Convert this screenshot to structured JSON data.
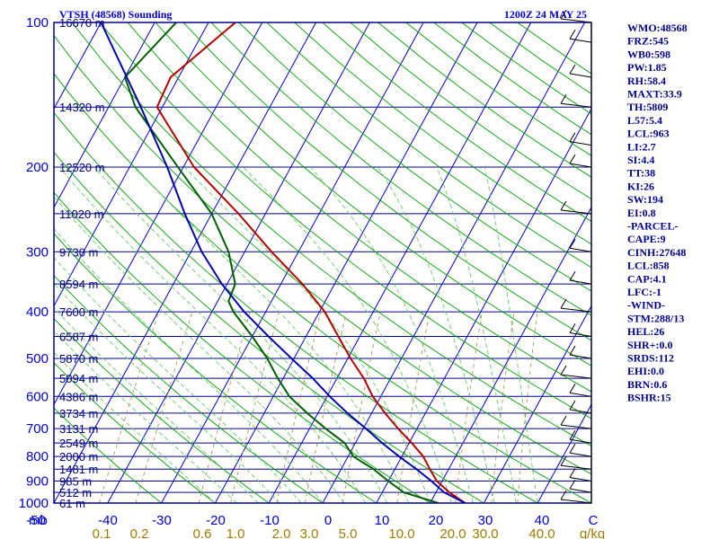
{
  "header": {
    "title": "VTSH (48568) Sounding",
    "time": "1200Z 24 MAY 25"
  },
  "indices": [
    "WMO:48568",
    "FRZ:545",
    "WB0:598",
    "PW:1.85",
    "RH:58.4",
    "MAXT:33.9",
    "TH:5809",
    "L57:5.4",
    "LCL:963",
    "LI:2.7",
    "SI:4.4",
    "TT:38",
    "KI:26",
    "SW:194",
    "EI:0.8",
    "-PARCEL-",
    "CAPE:9",
    "CINH:27648",
    "LCL:858",
    "CAP:4.1",
    "LFC:-1",
    "-WIND-",
    "STM:288/13",
    "HEL:26",
    "SHR+:0.0",
    "SRDS:112",
    "EHI:0.0",
    "BRN:0.6",
    "BSHR:15"
  ],
  "colors": {
    "frame": "#00008b",
    "isobar": "#00008b",
    "isotherm": "#0000cc",
    "dry_adiabat": "#00a000",
    "moist_adiabat": "#66cc66",
    "mixing_ratio": "#a08a40",
    "temperature": "#b00000",
    "dewpoint": "#006000",
    "parcel": "#0000aa",
    "text": "#00008b"
  },
  "chart_data": {
    "type": "line",
    "title": "VTSH (48568) Sounding",
    "yscale": "log-pressure",
    "ylabel": "mb",
    "xlabel": "C",
    "xlim": [
      -50,
      50
    ],
    "ylim": [
      1000,
      100
    ],
    "pressure_levels": [
      100,
      150,
      200,
      250,
      300,
      350,
      400,
      450,
      500,
      550,
      600,
      650,
      700,
      750,
      800,
      850,
      900,
      950,
      1000
    ],
    "pressure_tick_labels": [
      "100",
      "200",
      "300",
      "400",
      "500",
      "600",
      "700",
      "800",
      "900",
      "1000"
    ],
    "height_labels": [
      {
        "p": 100,
        "label": "16670 m"
      },
      {
        "p": 150,
        "label": "14320 m"
      },
      {
        "p": 200,
        "label": "12520 m"
      },
      {
        "p": 250,
        "label": "11020 m"
      },
      {
        "p": 300,
        "label": "9730 m"
      },
      {
        "p": 350,
        "label": "8594 m"
      },
      {
        "p": 400,
        "label": "7600 m"
      },
      {
        "p": 450,
        "label": "6587 m"
      },
      {
        "p": 500,
        "label": "5870 m"
      },
      {
        "p": 550,
        "label": "5094 m"
      },
      {
        "p": 600,
        "label": "4386 m"
      },
      {
        "p": 650,
        "label": "3734 m"
      },
      {
        "p": 700,
        "label": "3131 m"
      },
      {
        "p": 750,
        "label": "2549 m"
      },
      {
        "p": 800,
        "label": "2000 m"
      },
      {
        "p": 850,
        "label": "1481 m"
      },
      {
        "p": 900,
        "label": "985 m"
      },
      {
        "p": 950,
        "label": "512 m"
      },
      {
        "p": 1000,
        "label": "61 m"
      }
    ],
    "temp_tick_labels": [
      "mb",
      "-50",
      "-40",
      "-30",
      "-20",
      "-10",
      "0",
      "10",
      "20",
      "30",
      "40",
      "C"
    ],
    "mixing_ratio_labels": [
      "0.1",
      "0.2",
      "0.6",
      "1.0",
      "2.0",
      "3.0",
      "5.0",
      "10.0",
      "20.0",
      "30.0",
      "40.0",
      "g/kg"
    ],
    "series": [
      {
        "key": "temperature",
        "p": [
          1000,
          950,
          900,
          850,
          800,
          750,
          700,
          650,
          600,
          550,
          500,
          450,
          400,
          350,
          300,
          250,
          200,
          150,
          130,
          100
        ],
        "t": [
          26.5,
          22.5,
          19.0,
          16.5,
          14.0,
          10.5,
          6.5,
          2.5,
          -1.5,
          -5.0,
          -9.5,
          -14.0,
          -19.0,
          -26.0,
          -35.0,
          -45.0,
          -58.0,
          -71.0,
          -71.5,
          -65.0
        ]
      },
      {
        "key": "dewpoint",
        "p": [
          1000,
          950,
          900,
          850,
          800,
          750,
          700,
          650,
          600,
          550,
          500,
          450,
          400,
          380,
          350,
          300,
          250,
          200,
          150,
          130,
          100
        ],
        "t": [
          21.5,
          14.0,
          10.0,
          6.0,
          1.0,
          -2.0,
          -7.0,
          -12.0,
          -17.0,
          -21.0,
          -25.0,
          -30.0,
          -36.0,
          -38.0,
          -38.5,
          -43.0,
          -50.0,
          -61.0,
          -75.0,
          -80.0,
          -76.0
        ]
      },
      {
        "key": "parcel",
        "p": [
          1000,
          950,
          900,
          850,
          800,
          750,
          700,
          650,
          600,
          550,
          500,
          450,
          400,
          350,
          300,
          250,
          200,
          150,
          100
        ],
        "t": [
          26.5,
          21.5,
          18.0,
          14.0,
          9.5,
          5.0,
          0.5,
          -4.5,
          -9.5,
          -14.5,
          -20.5,
          -27.0,
          -34.0,
          -41.0,
          -48.0,
          -55.0,
          -63.0,
          -74.0,
          -90.0
        ]
      }
    ]
  }
}
